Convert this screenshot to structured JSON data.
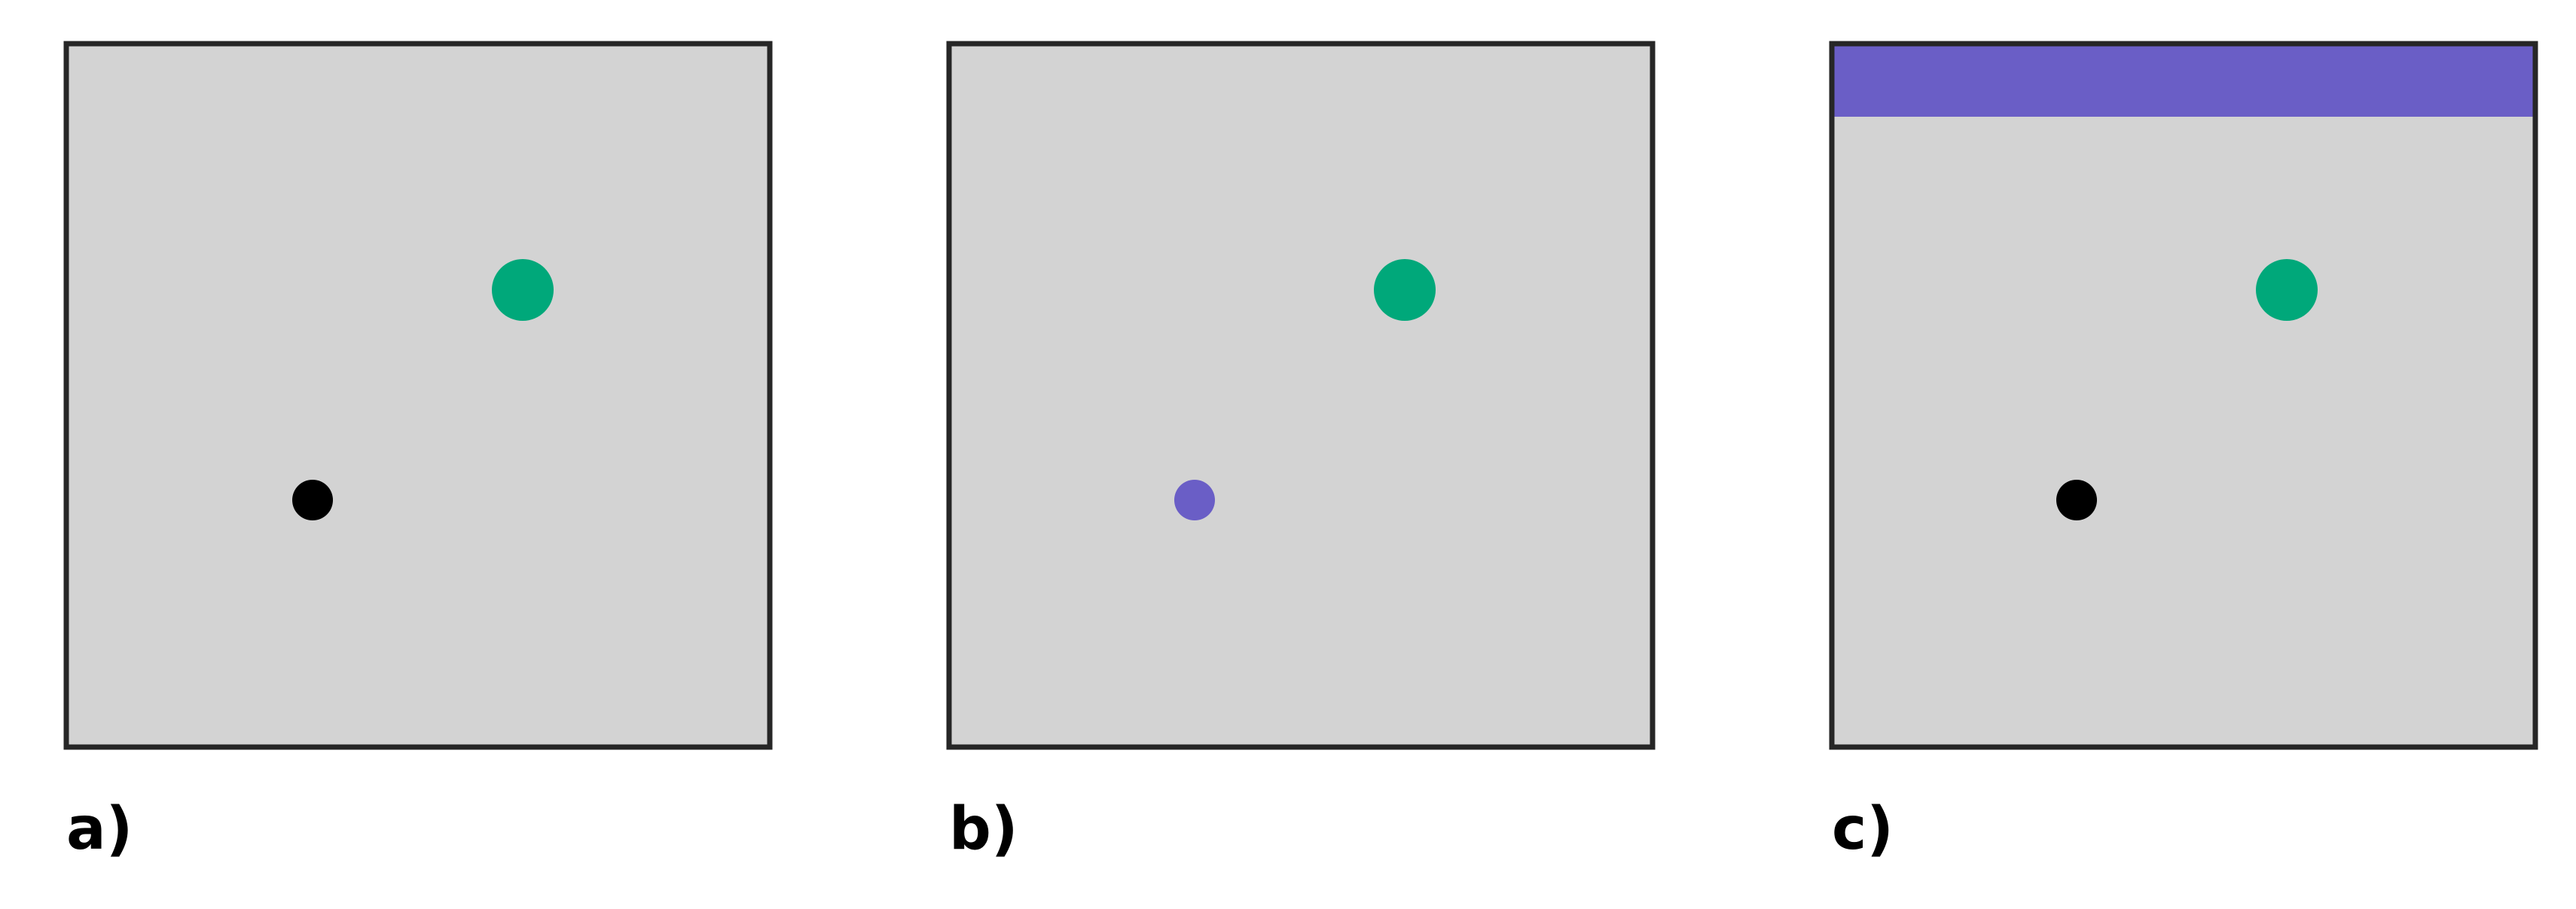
{
  "colors": {
    "background": "#d3d3d3",
    "frame": "#262626",
    "target_dot": "#00a87a",
    "agent_dot_default": "#000000",
    "highlight": "#6a5ec6"
  },
  "panels": [
    {
      "id": "a",
      "caption": "a)",
      "agent_dot_color": "#000000",
      "top_bar": false
    },
    {
      "id": "b",
      "caption": "b)",
      "agent_dot_color": "#6a5ec6",
      "top_bar": false
    },
    {
      "id": "c",
      "caption": "c)",
      "agent_dot_color": "#000000",
      "top_bar": true
    }
  ]
}
